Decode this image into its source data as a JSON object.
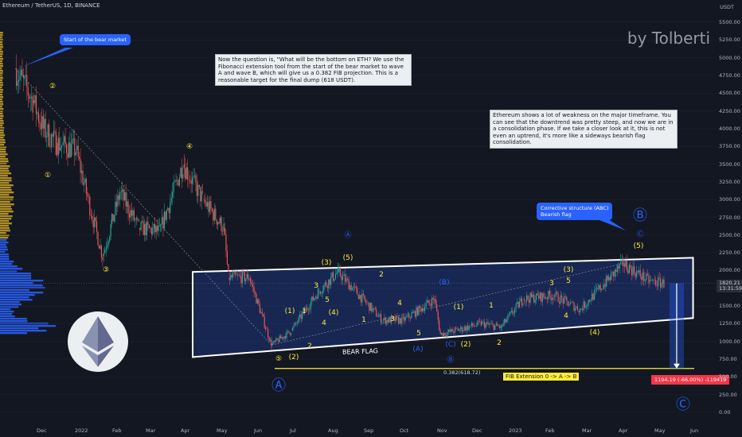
{
  "header": {
    "symbol_line": "Ethereum / TetherUS, 1D, BINANCE"
  },
  "watermark": "by Tolberti",
  "annotations": {
    "bear_start": "Start of the bear market",
    "question": "Now the question is, \"What will be the bottom on ETH? We use the Fibonacci extension tool from the start of the bear market to wave A and wave B, which will give us a 0.382 FIB projection. This is a reasonable target for the final dump (618 USDT).",
    "weakness": "Ethereum shows a lot of weakness on the major timeframe. You can see that the downtrend was pretty steep, and now we are in a consolidation phase. If we take a closer look at it, this is not even an uptrend, it's more like a sideways bearish flag consolidation.",
    "corrective_line1": "Corrective structure (ABC)",
    "corrective_line2": "Bearish flag",
    "bear_flag": "BEAR FLAG",
    "fib_level": "0.382(618.72)",
    "fib_extension": "FIB Extension 0 -> A -> B",
    "target_tag": "1194.19 (-66.00%) -119419"
  },
  "price_axis": {
    "currency": "USDT",
    "ticks": [
      "5500.00",
      "5250.00",
      "5000.00",
      "4750.00",
      "4500.00",
      "4250.00",
      "4000.00",
      "3750.00",
      "3500.00",
      "3250.00",
      "3000.00",
      "2750.00",
      "2500.00",
      "2250.00",
      "2000.00",
      "1750.00",
      "1500.00",
      "1250.00",
      "1000.00",
      "750.00",
      "500.00",
      "250.00",
      "0.00"
    ],
    "last_price": "1820.21",
    "countdown": "13:31:59"
  },
  "time_axis": [
    "Dec",
    "2022",
    "Feb",
    "Mar",
    "Apr",
    "May",
    "Jun",
    "Jul",
    "Aug",
    "Sep",
    "Oct",
    "Nov",
    "Dec",
    "2023",
    "Feb",
    "Mar",
    "Apr",
    "May",
    "Jun"
  ],
  "waves": [
    {
      "t": "②",
      "c": "y",
      "x": 66,
      "y": 109
    },
    {
      "t": "①",
      "c": "y",
      "x": 60,
      "y": 221
    },
    {
      "t": "③",
      "c": "y",
      "x": 133,
      "y": 340
    },
    {
      "t": "④",
      "c": "y",
      "x": 238,
      "y": 185
    },
    {
      "t": "Ⓐ",
      "c": "b",
      "x": 437,
      "y": 295
    },
    {
      "t": "(3)",
      "c": "y",
      "x": 410,
      "y": 331
    },
    {
      "t": "(5)",
      "c": "y",
      "x": 437,
      "y": 325
    },
    {
      "t": "5",
      "c": "y",
      "x": 411,
      "y": 378
    },
    {
      "t": "3",
      "c": "y",
      "x": 397,
      "y": 360
    },
    {
      "t": "(1)",
      "c": "y",
      "x": 364,
      "y": 392
    },
    {
      "t": "(4)",
      "c": "y",
      "x": 419,
      "y": 394
    },
    {
      "t": "4",
      "c": "y",
      "x": 407,
      "y": 407
    },
    {
      "t": "1",
      "c": "y",
      "x": 382,
      "y": 392
    },
    {
      "t": "2",
      "c": "y",
      "x": 389,
      "y": 436
    },
    {
      "t": "(2)",
      "c": "y",
      "x": 369,
      "y": 450
    },
    {
      "t": "⑤",
      "c": "y",
      "x": 350,
      "y": 452
    },
    {
      "t": "2",
      "c": "y",
      "x": 479,
      "y": 346
    },
    {
      "t": "1",
      "c": "y",
      "x": 457,
      "y": 403
    },
    {
      "t": "4",
      "c": "y",
      "x": 502,
      "y": 382
    },
    {
      "t": "3",
      "c": "y",
      "x": 493,
      "y": 402
    },
    {
      "t": "5",
      "c": "y",
      "x": 526,
      "y": 420
    },
    {
      "t": "(A)",
      "c": "b",
      "x": 525,
      "y": 440
    },
    {
      "t": "(B)",
      "c": "b",
      "x": 558,
      "y": 356
    },
    {
      "t": "(1)",
      "c": "y",
      "x": 576,
      "y": 387
    },
    {
      "t": "1",
      "c": "y",
      "x": 617,
      "y": 385
    },
    {
      "t": "(C)",
      "c": "b",
      "x": 566,
      "y": 434
    },
    {
      "t": "(2)",
      "c": "y",
      "x": 585,
      "y": 434
    },
    {
      "t": "2",
      "c": "y",
      "x": 627,
      "y": 432
    },
    {
      "t": "Ⓑ",
      "c": "b",
      "x": 566,
      "y": 452
    },
    {
      "t": "Ⓐ",
      "c": "b",
      "x": 350,
      "y": 484
    },
    {
      "t": "3",
      "c": "y",
      "x": 693,
      "y": 357
    },
    {
      "t": "(3)",
      "c": "y",
      "x": 714,
      "y": 340
    },
    {
      "t": "5",
      "c": "y",
      "x": 714,
      "y": 354
    },
    {
      "t": "4",
      "c": "y",
      "x": 711,
      "y": 398
    },
    {
      "t": "(4)",
      "c": "y",
      "x": 747,
      "y": 419
    },
    {
      "t": "(5)",
      "c": "y",
      "x": 802,
      "y": 310
    },
    {
      "t": "Ⓒ",
      "c": "b",
      "x": 804,
      "y": 294
    },
    {
      "t": "Ⓑ",
      "c": "b",
      "x": 804,
      "y": 270
    },
    {
      "t": "Ⓒ",
      "c": "b",
      "x": 858,
      "y": 508
    }
  ],
  "chart_data": {
    "type": "line",
    "title": "Ethereum / TetherUS, 1D, BINANCE",
    "xlabel": "",
    "ylabel": "USDT",
    "ylim": [
      0,
      5600
    ],
    "x_ticks": [
      "Dec",
      "2022",
      "Feb",
      "Mar",
      "Apr",
      "May",
      "Jun",
      "Jul",
      "Aug",
      "Sep",
      "Oct",
      "Nov",
      "Dec",
      "2023",
      "Feb",
      "Mar",
      "Apr",
      "May",
      "Jun"
    ],
    "series": [
      {
        "values": [
          {
            "x": "2021-11-10",
            "y": 4850
          },
          {
            "x": "2021-11-25",
            "y": 4400
          },
          {
            "x": "2021-12-04",
            "y": 4000
          },
          {
            "x": "2021-12-15",
            "y": 3800
          },
          {
            "x": "2022-01-01",
            "y": 3700
          },
          {
            "x": "2022-01-10",
            "y": 3100
          },
          {
            "x": "2022-01-24",
            "y": 2200
          },
          {
            "x": "2022-02-08",
            "y": 3100
          },
          {
            "x": "2022-02-24",
            "y": 2600
          },
          {
            "x": "2022-03-14",
            "y": 2550
          },
          {
            "x": "2022-04-03",
            "y": 3500
          },
          {
            "x": "2022-04-20",
            "y": 3000
          },
          {
            "x": "2022-05-08",
            "y": 2600
          },
          {
            "x": "2022-05-12",
            "y": 1900
          },
          {
            "x": "2022-05-30",
            "y": 1900
          },
          {
            "x": "2022-06-18",
            "y": 950
          },
          {
            "x": "2022-07-05",
            "y": 1150
          },
          {
            "x": "2022-07-28",
            "y": 1700
          },
          {
            "x": "2022-08-14",
            "y": 1980
          },
          {
            "x": "2022-09-07",
            "y": 1550
          },
          {
            "x": "2022-09-21",
            "y": 1300
          },
          {
            "x": "2022-10-10",
            "y": 1300
          },
          {
            "x": "2022-11-05",
            "y": 1600
          },
          {
            "x": "2022-11-10",
            "y": 1100
          },
          {
            "x": "2022-12-15",
            "y": 1250
          },
          {
            "x": "2023-01-01",
            "y": 1200
          },
          {
            "x": "2023-01-20",
            "y": 1600
          },
          {
            "x": "2023-02-15",
            "y": 1650
          },
          {
            "x": "2023-03-10",
            "y": 1450
          },
          {
            "x": "2023-04-16",
            "y": 2100
          },
          {
            "x": "2023-05-08",
            "y": 1850
          },
          {
            "x": "2023-05-21",
            "y": 1820
          }
        ]
      }
    ],
    "flag_channel": {
      "upper": [
        {
          "x": "2022-06-01",
          "y": 1980
        },
        {
          "x": "2023-06-15",
          "y": 2180
        }
      ],
      "lower": [
        {
          "x": "2022-06-01",
          "y": 780
        },
        {
          "x": "2023-06-15",
          "y": 1330
        }
      ]
    },
    "fib_level": {
      "label": "0.382(618.72)",
      "y": 618.72
    },
    "target": {
      "y": 618.72,
      "change_pct": -66.0
    },
    "last_price": 1820.21
  }
}
